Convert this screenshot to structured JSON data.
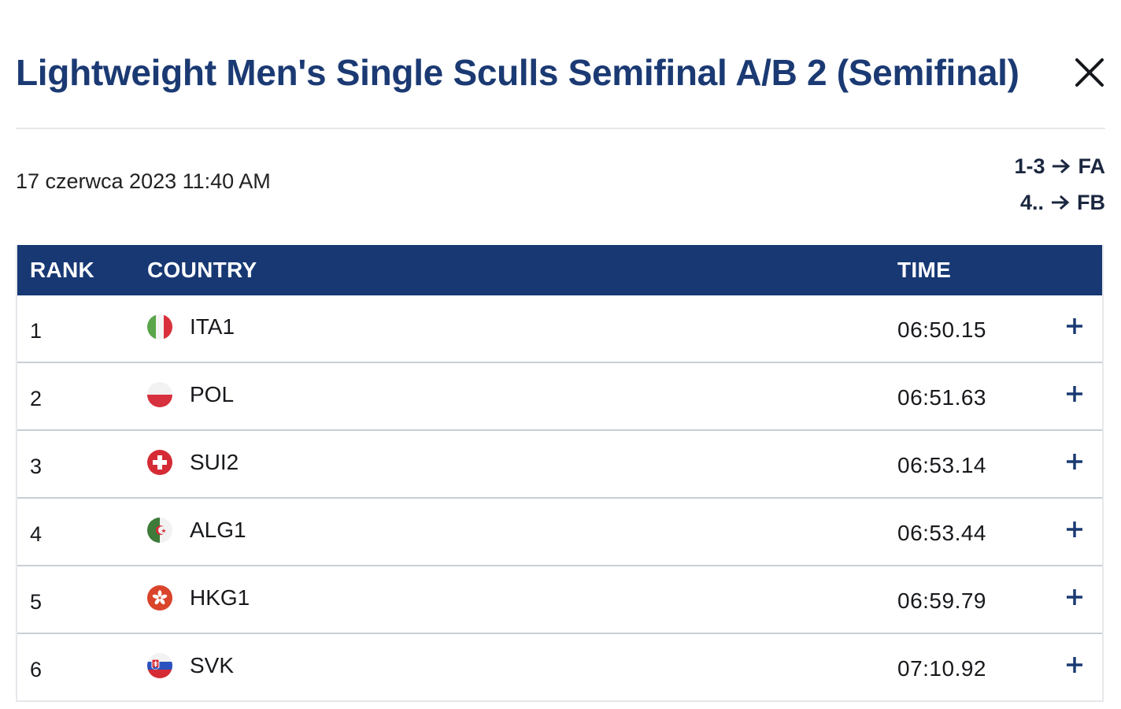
{
  "header": {
    "title": "Lightweight Men's Single Sculls Semifinal A/B 2 (Semifinal)",
    "close_icon": "close-icon"
  },
  "race": {
    "datetime": "17 czerwca 2023 11:40 AM",
    "progression": [
      {
        "range": "1-3",
        "final": "FA"
      },
      {
        "range": "4..",
        "final": "FB"
      }
    ]
  },
  "table": {
    "columns": {
      "rank": "RANK",
      "country": "COUNTRY",
      "time": "TIME"
    },
    "rows": [
      {
        "rank": "1",
        "country": "ITA1",
        "flag": "italy-flag-icon",
        "time": "06:50.15"
      },
      {
        "rank": "2",
        "country": "POL",
        "flag": "poland-flag-icon",
        "time": "06:51.63"
      },
      {
        "rank": "3",
        "country": "SUI2",
        "flag": "switzerland-flag-icon",
        "time": "06:53.14"
      },
      {
        "rank": "4",
        "country": "ALG1",
        "flag": "algeria-flag-icon",
        "time": "06:53.44"
      },
      {
        "rank": "5",
        "country": "HKG1",
        "flag": "hong-kong-flag-icon",
        "time": "06:59.79"
      },
      {
        "rank": "6",
        "country": "SVK",
        "flag": "slovakia-flag-icon",
        "time": "07:10.92"
      }
    ]
  },
  "colors": {
    "title": "#1b3a73",
    "header_bg": "#173873",
    "accent": "#1b3a73"
  }
}
